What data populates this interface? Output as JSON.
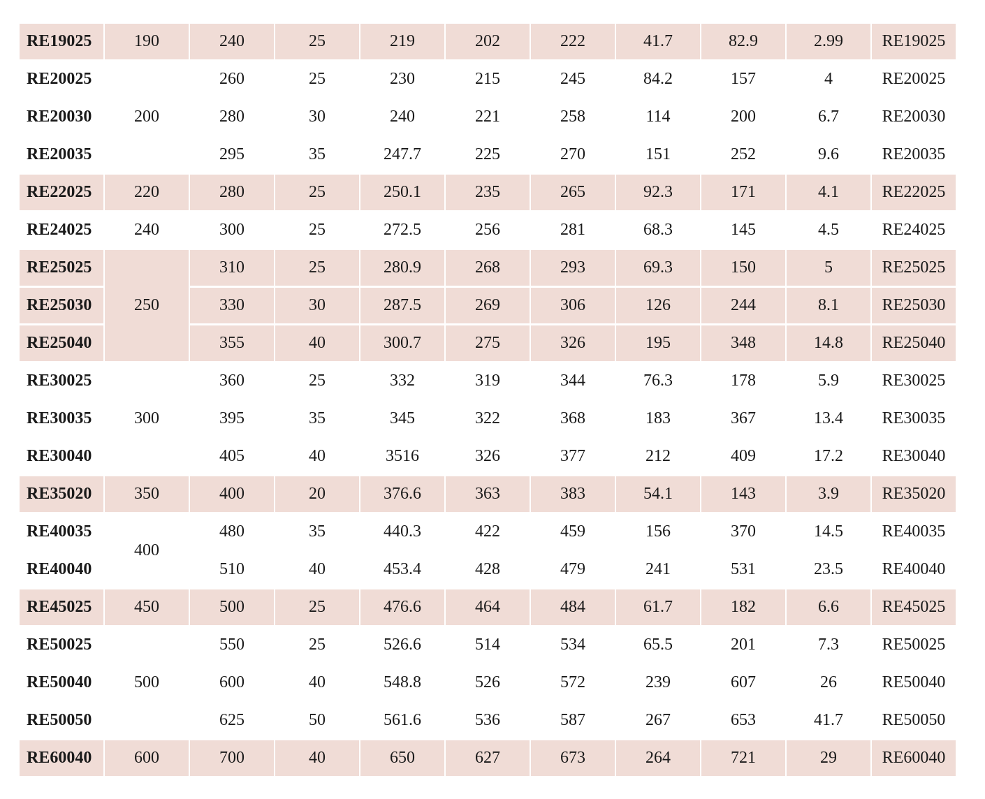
{
  "colors": {
    "shaded": "#f0dcd6"
  },
  "rows": [
    {
      "code": "RE19025",
      "group": "190",
      "span": 1,
      "shaded": true,
      "values": [
        "240",
        "25",
        "219",
        "202",
        "222",
        "41.7",
        "82.9",
        "2.99"
      ],
      "ref": "RE19025"
    },
    {
      "code": "RE20025",
      "group": "200",
      "span": 3,
      "shaded": false,
      "values": [
        "260",
        "25",
        "230",
        "215",
        "245",
        "84.2",
        "157",
        "4"
      ],
      "ref": "RE20025"
    },
    {
      "code": "RE20030",
      "shaded": false,
      "values": [
        "280",
        "30",
        "240",
        "221",
        "258",
        "114",
        "200",
        "6.7"
      ],
      "ref": "RE20030"
    },
    {
      "code": "RE20035",
      "shaded": false,
      "values": [
        "295",
        "35",
        "247.7",
        "225",
        "270",
        "151",
        "252",
        "9.6"
      ],
      "ref": "RE20035"
    },
    {
      "code": "RE22025",
      "group": "220",
      "span": 1,
      "shaded": true,
      "values": [
        "280",
        "25",
        "250.1",
        "235",
        "265",
        "92.3",
        "171",
        "4.1"
      ],
      "ref": "RE22025"
    },
    {
      "code": "RE24025",
      "group": "240",
      "span": 1,
      "shaded": false,
      "values": [
        "300",
        "25",
        "272.5",
        "256",
        "281",
        "68.3",
        "145",
        "4.5"
      ],
      "ref": "RE24025"
    },
    {
      "code": "RE25025",
      "group": "250",
      "span": 3,
      "shaded": true,
      "values": [
        "310",
        "25",
        "280.9",
        "268",
        "293",
        "69.3",
        "150",
        "5"
      ],
      "ref": "RE25025"
    },
    {
      "code": "RE25030",
      "shaded": true,
      "values": [
        "330",
        "30",
        "287.5",
        "269",
        "306",
        "126",
        "244",
        "8.1"
      ],
      "ref": "RE25030"
    },
    {
      "code": "RE25040",
      "shaded": true,
      "values": [
        "355",
        "40",
        "300.7",
        "275",
        "326",
        "195",
        "348",
        "14.8"
      ],
      "ref": "RE25040"
    },
    {
      "code": "RE30025",
      "group": "300",
      "span": 3,
      "shaded": false,
      "values": [
        "360",
        "25",
        "332",
        "319",
        "344",
        "76.3",
        "178",
        "5.9"
      ],
      "ref": "RE30025"
    },
    {
      "code": "RE30035",
      "shaded": false,
      "values": [
        "395",
        "35",
        "345",
        "322",
        "368",
        "183",
        "367",
        "13.4"
      ],
      "ref": "RE30035"
    },
    {
      "code": "RE30040",
      "shaded": false,
      "values": [
        "405",
        "40",
        "3516",
        "326",
        "377",
        "212",
        "409",
        "17.2"
      ],
      "ref": "RE30040"
    },
    {
      "code": "RE35020",
      "group": "350",
      "span": 1,
      "shaded": true,
      "values": [
        "400",
        "20",
        "376.6",
        "363",
        "383",
        "54.1",
        "143",
        "3.9"
      ],
      "ref": "RE35020"
    },
    {
      "code": "RE40035",
      "group": "400",
      "span": 2,
      "shaded": false,
      "values": [
        "480",
        "35",
        "440.3",
        "422",
        "459",
        "156",
        "370",
        "14.5"
      ],
      "ref": "RE40035"
    },
    {
      "code": "RE40040",
      "shaded": false,
      "values": [
        "510",
        "40",
        "453.4",
        "428",
        "479",
        "241",
        "531",
        "23.5"
      ],
      "ref": "RE40040"
    },
    {
      "code": "RE45025",
      "group": "450",
      "span": 1,
      "shaded": true,
      "values": [
        "500",
        "25",
        "476.6",
        "464",
        "484",
        "61.7",
        "182",
        "6.6"
      ],
      "ref": "RE45025"
    },
    {
      "code": "RE50025",
      "group": "500",
      "span": 3,
      "shaded": false,
      "values": [
        "550",
        "25",
        "526.6",
        "514",
        "534",
        "65.5",
        "201",
        "7.3"
      ],
      "ref": "RE50025"
    },
    {
      "code": "RE50040",
      "shaded": false,
      "values": [
        "600",
        "40",
        "548.8",
        "526",
        "572",
        "239",
        "607",
        "26"
      ],
      "ref": "RE50040"
    },
    {
      "code": "RE50050",
      "shaded": false,
      "values": [
        "625",
        "50",
        "561.6",
        "536",
        "587",
        "267",
        "653",
        "41.7"
      ],
      "ref": "RE50050"
    },
    {
      "code": "RE60040",
      "group": "600",
      "span": 1,
      "shaded": true,
      "values": [
        "700",
        "40",
        "650",
        "627",
        "673",
        "264",
        "721",
        "29"
      ],
      "ref": "RE60040"
    }
  ]
}
